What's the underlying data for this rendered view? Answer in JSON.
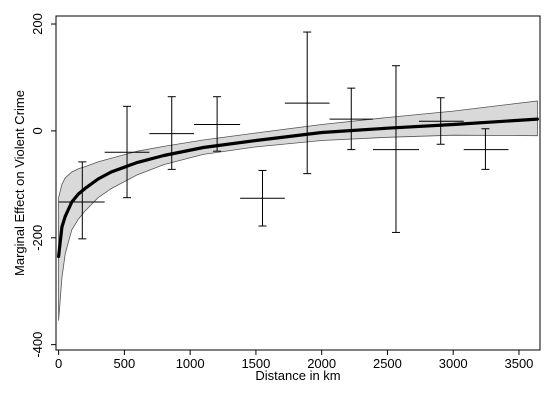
{
  "chart_data": {
    "type": "line",
    "title": "",
    "xlabel": "Distance in km",
    "ylabel": "Marginal Effect on Violent Crime",
    "xlim": [
      -20,
      3660
    ],
    "ylim": [
      -410,
      215
    ],
    "xticks": [
      0,
      500,
      1000,
      1500,
      2000,
      2500,
      3000,
      3500
    ],
    "yticks": [
      -400,
      -200,
      0,
      200
    ],
    "grid": false,
    "legend": "none",
    "band_color": "#d9d9d9",
    "line_color": "#000000",
    "fitted_curve": {
      "x": [
        0,
        25,
        50,
        100,
        150,
        200,
        300,
        400,
        600,
        800,
        1100,
        1500,
        2000,
        2500,
        3000,
        3640
      ],
      "y": [
        -235,
        -180,
        -160,
        -133,
        -118,
        -108,
        -90,
        -77,
        -59,
        -46,
        -31,
        -18,
        -3,
        5,
        12,
        22
      ],
      "lower": [
        -355,
        -275,
        -230,
        -185,
        -165,
        -150,
        -125,
        -108,
        -82,
        -63,
        -44,
        -30,
        -18,
        -12,
        -8,
        -9
      ],
      "upper": [
        -125,
        -100,
        -88,
        -77,
        -71,
        -67,
        -58,
        -51,
        -38,
        -29,
        -17,
        -4,
        12,
        25,
        37,
        56
      ]
    },
    "bin_estimates": [
      {
        "x": 180,
        "x_low": 0,
        "x_high": 350,
        "y": -133,
        "y_low": -202,
        "y_high": -58
      },
      {
        "x": 520,
        "x_low": 350,
        "x_high": 690,
        "y": -40,
        "y_low": -125,
        "y_high": 46
      },
      {
        "x": 860,
        "x_low": 690,
        "x_high": 1030,
        "y": -5,
        "y_low": -72,
        "y_high": 64
      },
      {
        "x": 1205,
        "x_low": 1030,
        "x_high": 1380,
        "y": 12,
        "y_low": -38,
        "y_high": 64
      },
      {
        "x": 1550,
        "x_low": 1380,
        "x_high": 1720,
        "y": -126,
        "y_low": -178,
        "y_high": -74
      },
      {
        "x": 1890,
        "x_low": 1720,
        "x_high": 2060,
        "y": 52,
        "y_low": -80,
        "y_high": 185
      },
      {
        "x": 2225,
        "x_low": 2060,
        "x_high": 2390,
        "y": 22,
        "y_low": -35,
        "y_high": 80
      },
      {
        "x": 2565,
        "x_low": 2390,
        "x_high": 2740,
        "y": -35,
        "y_low": -190,
        "y_high": 122
      },
      {
        "x": 2905,
        "x_low": 2740,
        "x_high": 3080,
        "y": 18,
        "y_low": -25,
        "y_high": 62
      },
      {
        "x": 3245,
        "x_low": 3080,
        "x_high": 3420,
        "y": -35,
        "y_low": -72,
        "y_high": 4
      }
    ]
  }
}
